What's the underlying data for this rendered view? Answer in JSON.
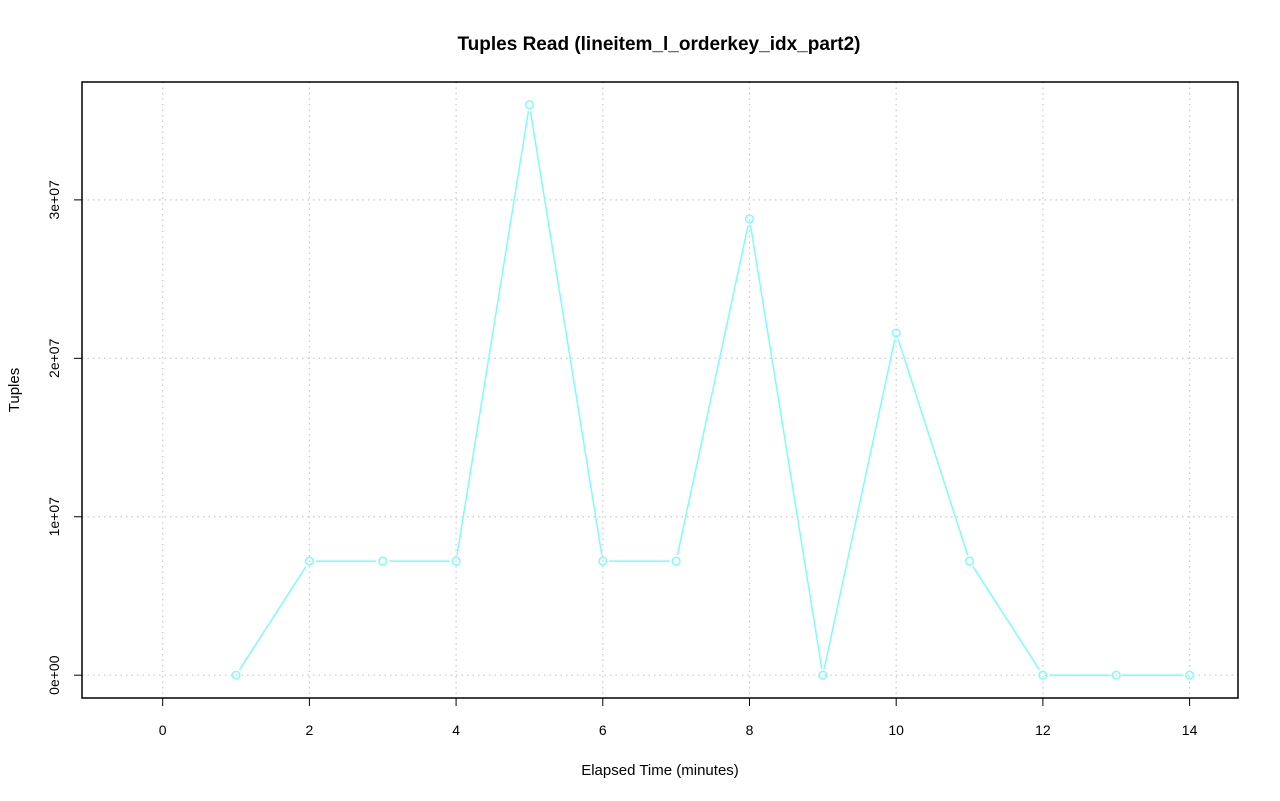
{
  "chart_data": {
    "type": "line",
    "title": "Tuples Read (lineitem_l_orderkey_idx_part2)",
    "xlabel": "Elapsed Time (minutes)",
    "ylabel": "Tuples",
    "x": [
      1,
      2,
      3,
      4,
      5,
      6,
      7,
      8,
      9,
      10,
      11,
      12,
      13,
      14
    ],
    "series": [
      {
        "values": [
          0,
          7200000,
          7200000,
          7200000,
          36000000,
          7200000,
          7200000,
          28800000,
          0,
          21600000,
          7200000,
          0,
          0,
          0
        ]
      }
    ],
    "xlim": [
      -1.1,
      14.66
    ],
    "ylim": [
      -1440000,
      37440000
    ],
    "xticks": [
      0,
      2,
      4,
      6,
      8,
      10,
      12,
      14
    ],
    "xtick_labels": [
      "0",
      "2",
      "4",
      "6",
      "8",
      "10",
      "12",
      "14"
    ],
    "yticks": [
      0,
      10000000,
      20000000,
      30000000
    ],
    "ytick_labels": [
      "0e+00",
      "1e+07",
      "2e+07",
      "3e+07"
    ],
    "grid": true,
    "line_color": "#7ffcfc",
    "marker": "open-circle"
  }
}
